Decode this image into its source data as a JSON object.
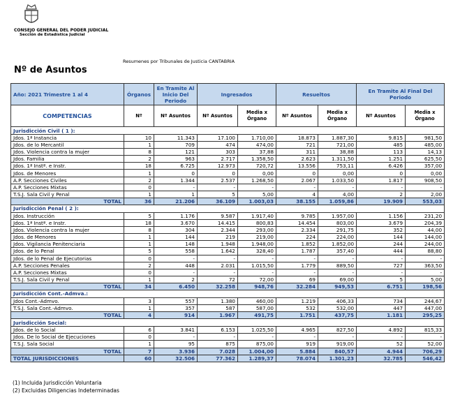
{
  "header": {
    "org": "CONSEJO GENERAL DEL PODER JUDICIAL",
    "dept": "Sección de Estadística Judicial",
    "subtitle": "Resumenes por Tribunales de Justicia  CANTABRIA",
    "title": "Nº de Asuntos"
  },
  "table": {
    "head1": [
      "Año:  2021     Trimestre  1 al 4",
      "Órganos",
      "En Tramite Al Inicio Del Periodo",
      "Ingresados",
      "Resueltos",
      "En Tramite Al Final Del Periodo"
    ],
    "head2": [
      "COMPETENCIAS",
      "Nº",
      "Nº Asuntos",
      "Nº Asuntos",
      "Media x Órgano",
      "Nº Asuntos",
      "Media x Órgano",
      "Nº Asuntos",
      "Media x Órgano"
    ],
    "sections": [
      {
        "title": "Jurisdicción Civil ( 1 ):",
        "rows": [
          [
            "Jdos. 1ª Instancia",
            "10",
            "11.343",
            "17.100",
            "1.710,00",
            "18.873",
            "1.887,30",
            "9.815",
            "981,50"
          ],
          [
            "Jdos. de lo Mercantil",
            "1",
            "709",
            "474",
            "474,00",
            "721",
            "721,00",
            "485",
            "485,00"
          ],
          [
            "Jdos. Violencia contra la mujer",
            "8",
            "121",
            "303",
            "37,88",
            "311",
            "38,88",
            "113",
            "14,13"
          ],
          [
            "Jdos. Familia",
            "2",
            "963",
            "2.717",
            "1.358,50",
            "2.623",
            "1.311,50",
            "1.251",
            "625,50"
          ],
          [
            "Jdos. 1ª Instª. e Instr.",
            "18",
            "6.725",
            "12.973",
            "720,72",
            "13.556",
            "753,11",
            "6.426",
            "357,00"
          ],
          [
            "Jdos. de Menores",
            "1",
            "0",
            "0",
            "0,00",
            "0",
            "0,00",
            "0",
            "0,00"
          ],
          [
            "A.P. Secciones Civiles",
            "2",
            "1.344",
            "2.537",
            "1.268,50",
            "2.067",
            "1.033,50",
            "1.817",
            "908,50"
          ],
          [
            "A.P. Secciones Mixtas",
            "0",
            "-",
            "-",
            "-",
            "-",
            "-",
            "-",
            "-"
          ],
          [
            "T.S.J. Sala Civil y Penal",
            "1",
            "1",
            "5",
            "5,00",
            "4",
            "4,00",
            "2",
            "2,00"
          ]
        ],
        "total": [
          "TOTAL",
          "36",
          "21.206",
          "36.109",
          "1.003,03",
          "38.155",
          "1.059,86",
          "19.909",
          "553,03"
        ]
      },
      {
        "title": "Jurisdicción Penal ( 2 ):",
        "rows": [
          [
            "Jdos. Instrucción",
            "5",
            "1.176",
            "9.587",
            "1.917,40",
            "9.785",
            "1.957,00",
            "1.156",
            "231,20"
          ],
          [
            "Jdos. 1ª Instª. e Instr.",
            "18",
            "3.670",
            "14.415",
            "800,83",
            "14.454",
            "803,00",
            "3.679",
            "204,39"
          ],
          [
            "Jdos. Violencia contra la mujer",
            "8",
            "304",
            "2.344",
            "293,00",
            "2.334",
            "291,75",
            "352",
            "44,00"
          ],
          [
            "Jdos. de Menores",
            "1",
            "144",
            "219",
            "219,00",
            "224",
            "224,00",
            "144",
            "144,00"
          ],
          [
            "Jdos. Vigilancia Penitenciaria",
            "1",
            "148",
            "1.948",
            "1.948,00",
            "1.852",
            "1.852,00",
            "244",
            "244,00"
          ],
          [
            "Jdos. de lo Penal",
            "5",
            "558",
            "1.642",
            "328,40",
            "1.787",
            "357,40",
            "444",
            "88,80"
          ],
          [
            "Jdos. de lo Penal de Ejecutorias",
            "0",
            "-",
            "-",
            "-",
            "-",
            "-",
            "-",
            "-"
          ],
          [
            "A.P. Secciones Penales",
            "2",
            "448",
            "2.031",
            "1.015,50",
            "1.779",
            "889,50",
            "727",
            "363,50"
          ],
          [
            "A.P. Secciones Mixtas",
            "0",
            "-",
            "-",
            "-",
            "-",
            "-",
            "-",
            "-"
          ],
          [
            "T.S.J. Sala Civil y Penal",
            "1",
            "2",
            "72",
            "72,00",
            "69",
            "69,00",
            "5",
            "5,00"
          ]
        ],
        "total": [
          "TOTAL",
          "34",
          "6.450",
          "32.258",
          "948,76",
          "32.284",
          "949,53",
          "6.751",
          "198,56"
        ]
      },
      {
        "title": "Jurisdicción Cont.-Admva.:",
        "rows": [
          [
            "Jdos Cont.-Admvo.",
            "3",
            "557",
            "1.380",
            "460,00",
            "1.219",
            "406,33",
            "734",
            "244,67"
          ],
          [
            "T.S.J. Sala Cont.-Admvo.",
            "1",
            "357",
            "587",
            "587,00",
            "532",
            "532,00",
            "447",
            "447,00"
          ]
        ],
        "total": [
          "TOTAL",
          "4",
          "914",
          "1.967",
          "491,75",
          "1.751",
          "437,75",
          "1.181",
          "295,25"
        ]
      },
      {
        "title": "Jurisdicción Social:",
        "rows": [
          [
            "Jdos. de lo Social",
            "6",
            "3.841",
            "6.153",
            "1.025,50",
            "4.965",
            "827,50",
            "4.892",
            "815,33"
          ],
          [
            "Jdos. De lo Social de Ejecuciones",
            "0",
            "-",
            "-",
            "-",
            "-",
            "-",
            "-",
            "-"
          ],
          [
            "T.S.J. Sala Social",
            "1",
            "95",
            "875",
            "875,00",
            "919",
            "919,00",
            "52",
            "52,00"
          ]
        ],
        "total": [
          "TOTAL",
          "7",
          "3.936",
          "7.028",
          "1.004,00",
          "5.884",
          "840,57",
          "4.944",
          "706,29"
        ]
      }
    ],
    "grand_total": [
      "TOTAL JURISDICCIONES",
      "60",
      "32.506",
      "77.362",
      "1.289,37",
      "78.074",
      "1.301,23",
      "32.785",
      "546,42"
    ]
  },
  "footnotes": [
    "(1) Incluida Jurisdicción Voluntaria",
    "(2) Excluidas Diligencias Indeterminadas"
  ]
}
